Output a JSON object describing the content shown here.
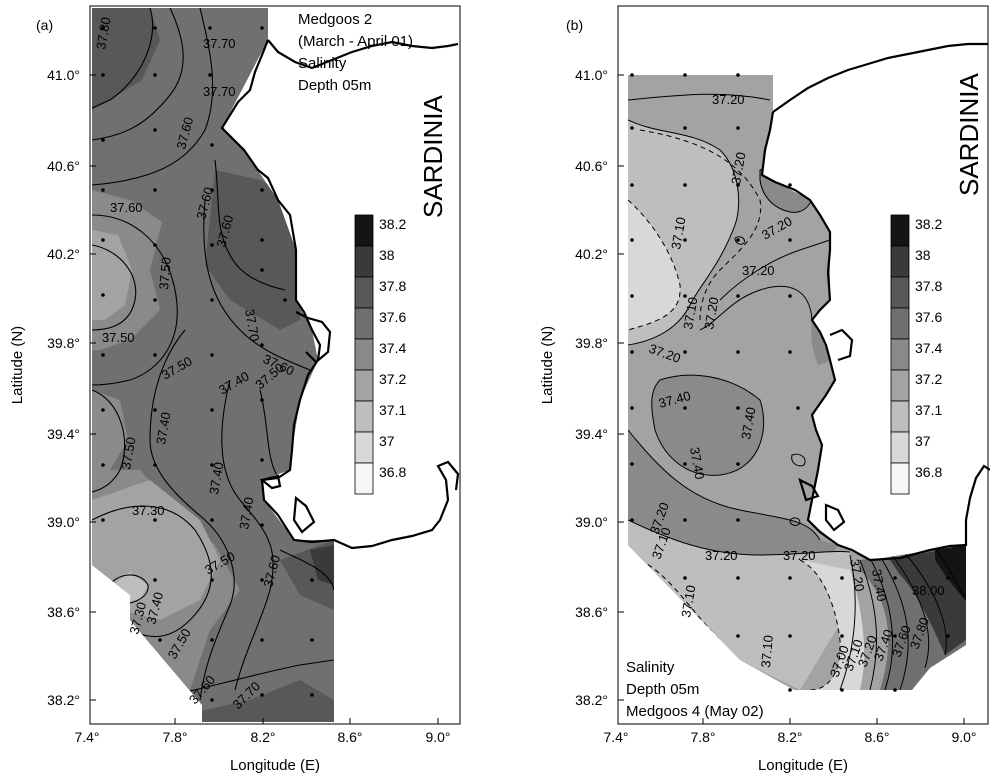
{
  "panels": [
    {
      "id": "a",
      "label": "(a)",
      "info_lines": [
        "Medgoos 2",
        "(March - April 01)",
        "Salinity",
        "Depth 05m"
      ],
      "region_label": "SARDINIA",
      "xlabel": "Longitude (E)",
      "ylabel": "Latitude (N)",
      "x_ticks": [
        "7.4°",
        "7.8°",
        "8.2°",
        "8.6°",
        "9.0°"
      ],
      "y_ticks": [
        "41.0°",
        "40.6°",
        "40.2°",
        "39.8°",
        "39.4°",
        "39.0°",
        "38.6°",
        "38.2°"
      ],
      "contour_labels": [
        "37.80",
        "37.70",
        "37.70",
        "37.60",
        "37.60",
        "37.60",
        "37.50",
        "37.60",
        "37.70",
        "37.50",
        "37.50",
        "37.40",
        "37.60",
        "37.50",
        "37.50",
        "37.40",
        "37.40",
        "37.30",
        "37.40",
        "37.50",
        "37.60",
        "37.30",
        "37.40",
        "37.50",
        "37.60",
        "37.70"
      ]
    },
    {
      "id": "b",
      "label": "(b)",
      "info_lines": [
        "Salinity",
        "Depth 05m",
        "Medgoos 4 (May 02)"
      ],
      "region_label": "SARDINIA",
      "xlabel": "Longitude (E)",
      "ylabel": "Latitude (N)",
      "x_ticks": [
        "7.4°",
        "7.8°",
        "8.2°",
        "8.6°",
        "9.0°"
      ],
      "y_ticks": [
        "41.0°",
        "40.6°",
        "40.2°",
        "39.8°",
        "39.4°",
        "39.0°",
        "38.6°",
        "38.2°"
      ],
      "contour_labels": [
        "37.20",
        "37.20",
        "37.10",
        "37.20",
        "37.20",
        "37.10",
        "37.20",
        "37.20",
        "37.40",
        "37.40",
        "37.40",
        "37.20",
        "37.10",
        "37.20",
        "37.20",
        "37.10",
        "37.20",
        "37.40",
        "38.00",
        "37.10",
        "37.80",
        "37.60",
        "37.40",
        "37.20",
        "37.10",
        "37.00"
      ]
    }
  ],
  "colorbar": {
    "ticks": [
      "38.2",
      "38",
      "37.8",
      "37.6",
      "37.4",
      "37.2",
      "37.1",
      "37",
      "36.8"
    ],
    "colors": [
      "#141414",
      "#3a3a3a",
      "#585858",
      "#707070",
      "#8a8a8a",
      "#a3a3a3",
      "#bebebe",
      "#d8d8d8",
      "#f7f7f7"
    ]
  }
}
